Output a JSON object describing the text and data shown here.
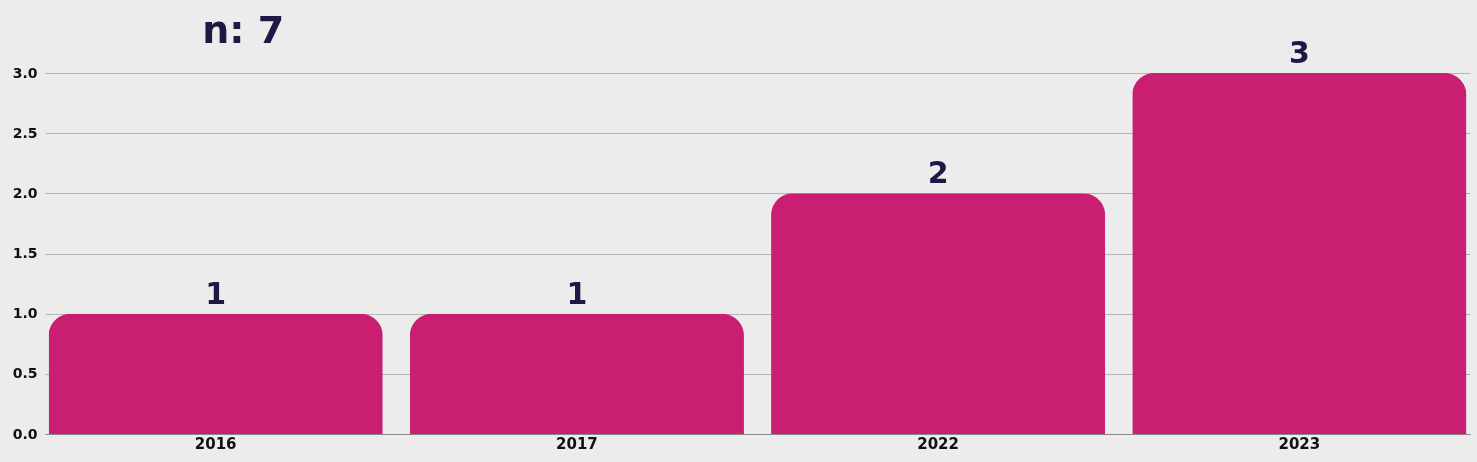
{
  "chart_data": {
    "type": "bar",
    "title": "n: 7",
    "categories": [
      "2016",
      "2017",
      "2022",
      "2023"
    ],
    "values": [
      1,
      1,
      2,
      3
    ],
    "color": "#c91e72",
    "ylim": [
      0,
      3
    ],
    "yticks": [
      {
        "value": 0,
        "label": "0.0"
      },
      {
        "value": 0.5,
        "label": "0.5"
      },
      {
        "value": 1,
        "label": "1.0"
      },
      {
        "value": 1.5,
        "label": "1.5"
      },
      {
        "value": 2,
        "label": "2.0"
      },
      {
        "value": 2.5,
        "label": "2.5"
      },
      {
        "value": 3,
        "label": "3.0"
      }
    ],
    "grid": "y",
    "data_labels": true
  }
}
